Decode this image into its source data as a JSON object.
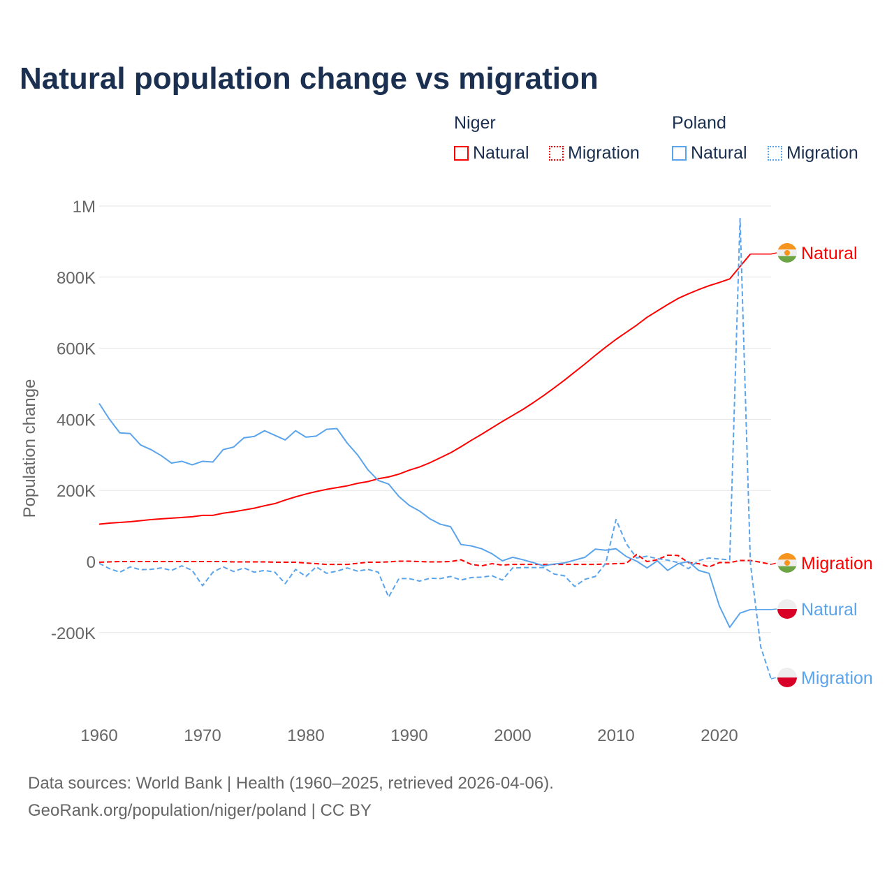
{
  "title": "Natural population change vs migration",
  "legend": {
    "groups": [
      {
        "name": "Niger",
        "color": "#ff0000",
        "items": [
          "Natural",
          "Migration"
        ]
      },
      {
        "name": "Poland",
        "color": "#5ba4ec",
        "items": [
          "Natural",
          "Migration"
        ]
      }
    ]
  },
  "footer": {
    "line1": "Data sources: World Bank | Health (1960–2025, retrieved 2026-04-06).",
    "line2": "GeoRank.org/population/niger/poland | CC BY"
  },
  "chart_data": {
    "type": "line",
    "title": "Natural population change vs migration",
    "xlabel": "",
    "ylabel": "Population change",
    "xlim": [
      1960,
      2025
    ],
    "ylim": [
      -400000,
      1000000
    ],
    "x_ticks": [
      1960,
      1970,
      1980,
      1990,
      2000,
      2010,
      2020
    ],
    "y_ticks": [
      {
        "v": 1000000,
        "label": "1M"
      },
      {
        "v": 800000,
        "label": "800K"
      },
      {
        "v": 600000,
        "label": "600K"
      },
      {
        "v": 400000,
        "label": "400K"
      },
      {
        "v": 200000,
        "label": "200K"
      },
      {
        "v": 0,
        "label": "0"
      },
      {
        "v": -200000,
        "label": "-200K"
      }
    ],
    "grid": true,
    "start_year": 1960,
    "unit": 1000,
    "series": [
      {
        "name": "Niger Natural",
        "country": "Niger",
        "label": "Natural",
        "color": "#ff0000",
        "dash": false,
        "flag": "niger",
        "values": [
          105,
          108,
          110,
          112,
          115,
          118,
          120,
          122,
          124,
          126,
          130,
          130,
          136,
          140,
          145,
          150,
          157,
          163,
          173,
          182,
          190,
          197,
          203,
          208,
          213,
          220,
          225,
          233,
          238,
          246,
          257,
          266,
          278,
          292,
          306,
          323,
          341,
          358,
          376,
          394,
          411,
          428,
          447,
          467,
          488,
          510,
          533,
          556,
          580,
          603,
          625,
          645,
          665,
          687,
          705,
          723,
          740,
          753,
          765,
          776,
          785,
          795,
          830,
          865
        ]
      },
      {
        "name": "Niger Migration",
        "country": "Niger",
        "label": "Migration",
        "color": "#ff0000",
        "dash": true,
        "flag": "niger",
        "values": [
          -2,
          -1,
          0,
          0,
          0,
          0,
          0,
          0,
          0,
          0,
          0,
          0,
          0,
          -1,
          -1,
          -1,
          -1,
          -2,
          -2,
          -2,
          -4,
          -6,
          -8,
          -8,
          -8,
          -5,
          -2,
          -2,
          -1,
          1,
          1,
          0,
          -1,
          -1,
          0,
          5,
          -8,
          -12,
          -6,
          -10,
          -8,
          -8,
          -8,
          -8,
          -8,
          -8,
          -8,
          -8,
          -8,
          -7,
          -6,
          -5,
          20,
          0,
          5,
          18,
          17,
          -3,
          -6,
          -15,
          -3,
          -3,
          3,
          3,
          -2,
          -8
        ]
      },
      {
        "name": "Poland Natural",
        "country": "Poland",
        "label": "Natural",
        "color": "#5ba4ec",
        "dash": false,
        "flag": "poland",
        "values": [
          445,
          400,
          362,
          360,
          328,
          315,
          298,
          277,
          282,
          272,
          282,
          280,
          315,
          322,
          348,
          352,
          368,
          355,
          342,
          368,
          350,
          353,
          372,
          374,
          333,
          300,
          258,
          228,
          218,
          183,
          158,
          142,
          120,
          105,
          98,
          48,
          44,
          36,
          22,
          2,
          12,
          5,
          -3,
          -12,
          -7,
          -4,
          4,
          12,
          35,
          32,
          36,
          14,
          1,
          -18,
          2,
          -25,
          -6,
          0,
          -25,
          -33,
          -125,
          -185,
          -145,
          -135
        ]
      },
      {
        "name": "Poland Migration",
        "country": "Poland",
        "label": "Migration",
        "color": "#5ba4ec",
        "dash": true,
        "flag": "poland",
        "values": [
          -5,
          -20,
          -30,
          -15,
          -23,
          -22,
          -18,
          -25,
          -12,
          -25,
          -68,
          -30,
          -15,
          -28,
          -18,
          -30,
          -25,
          -30,
          -62,
          -22,
          -42,
          -15,
          -33,
          -27,
          -18,
          -27,
          -22,
          -30,
          -100,
          -48,
          -48,
          -55,
          -47,
          -48,
          -42,
          -52,
          -45,
          -44,
          -40,
          -52,
          -18,
          -17,
          -17,
          -17,
          -35,
          -40,
          -70,
          -50,
          -42,
          -5,
          118,
          50,
          10,
          15,
          8,
          4,
          -3,
          -20,
          3,
          10,
          7,
          5,
          965,
          -5,
          -240,
          -330
        ]
      }
    ]
  }
}
